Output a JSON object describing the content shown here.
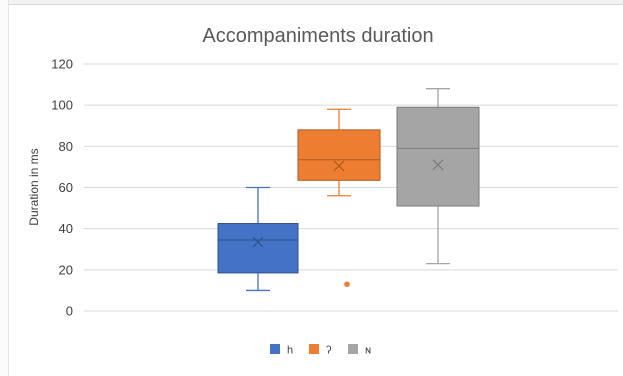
{
  "chart_data": {
    "type": "boxplot",
    "title": "Accompaniments duration",
    "xlabel": "",
    "ylabel": "Duration  in ms",
    "ylim": [
      0,
      120
    ],
    "yticks": [
      "0",
      "20",
      "40",
      "60",
      "80",
      "100",
      "120"
    ],
    "grid": true,
    "legend_position": "bottom",
    "series": [
      {
        "name": "h",
        "color": "#4472c4",
        "whisker_low": 10,
        "q1": 18.5,
        "median": 34.5,
        "q3": 42.5,
        "whisker_high": 60,
        "mean": 33.5,
        "outliers": []
      },
      {
        "name": "ʔ",
        "color": "#ed7d31",
        "whisker_low": 56,
        "q1": 63.5,
        "median": 73.5,
        "q3": 88,
        "whisker_high": 98,
        "mean": 70.5,
        "outliers": [
          13
        ]
      },
      {
        "name": "ɴ",
        "color": "#a5a5a5",
        "whisker_low": 23,
        "q1": 51,
        "median": 79,
        "q3": 99,
        "whisker_high": 108,
        "mean": 71,
        "outliers": []
      }
    ]
  }
}
